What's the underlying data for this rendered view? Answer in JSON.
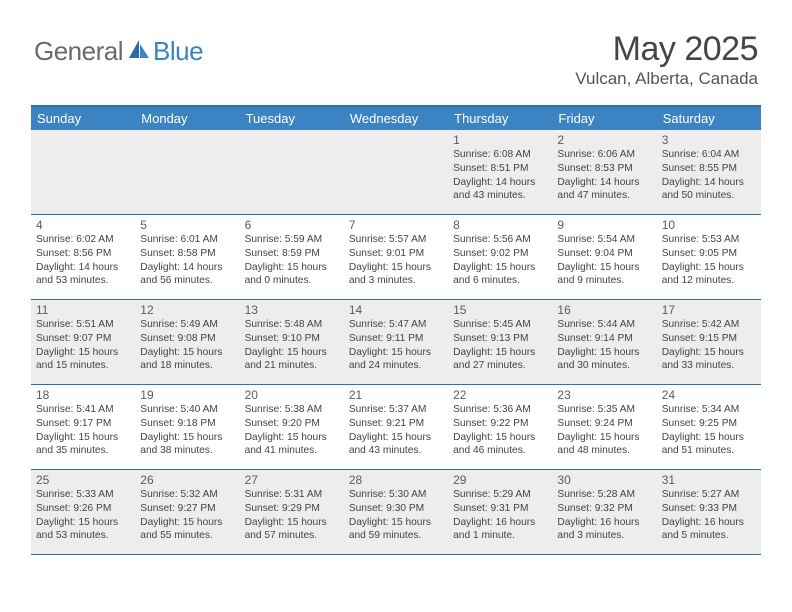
{
  "logo": {
    "general": "General",
    "blue": "Blue"
  },
  "title": "May 2025",
  "location": "Vulcan, Alberta, Canada",
  "colors": {
    "header_bg": "#3c83c3",
    "border": "#2b6faf",
    "shaded": "#ededed",
    "text": "#444444",
    "title_text": "#454545"
  },
  "weekdays": [
    "Sunday",
    "Monday",
    "Tuesday",
    "Wednesday",
    "Thursday",
    "Friday",
    "Saturday"
  ],
  "weeks": [
    [
      {
        "day": "",
        "sunrise": "",
        "sunset": "",
        "daylight": ""
      },
      {
        "day": "",
        "sunrise": "",
        "sunset": "",
        "daylight": ""
      },
      {
        "day": "",
        "sunrise": "",
        "sunset": "",
        "daylight": ""
      },
      {
        "day": "",
        "sunrise": "",
        "sunset": "",
        "daylight": ""
      },
      {
        "day": "1",
        "sunrise": "Sunrise: 6:08 AM",
        "sunset": "Sunset: 8:51 PM",
        "daylight": "Daylight: 14 hours and 43 minutes."
      },
      {
        "day": "2",
        "sunrise": "Sunrise: 6:06 AM",
        "sunset": "Sunset: 8:53 PM",
        "daylight": "Daylight: 14 hours and 47 minutes."
      },
      {
        "day": "3",
        "sunrise": "Sunrise: 6:04 AM",
        "sunset": "Sunset: 8:55 PM",
        "daylight": "Daylight: 14 hours and 50 minutes."
      }
    ],
    [
      {
        "day": "4",
        "sunrise": "Sunrise: 6:02 AM",
        "sunset": "Sunset: 8:56 PM",
        "daylight": "Daylight: 14 hours and 53 minutes."
      },
      {
        "day": "5",
        "sunrise": "Sunrise: 6:01 AM",
        "sunset": "Sunset: 8:58 PM",
        "daylight": "Daylight: 14 hours and 56 minutes."
      },
      {
        "day": "6",
        "sunrise": "Sunrise: 5:59 AM",
        "sunset": "Sunset: 8:59 PM",
        "daylight": "Daylight: 15 hours and 0 minutes."
      },
      {
        "day": "7",
        "sunrise": "Sunrise: 5:57 AM",
        "sunset": "Sunset: 9:01 PM",
        "daylight": "Daylight: 15 hours and 3 minutes."
      },
      {
        "day": "8",
        "sunrise": "Sunrise: 5:56 AM",
        "sunset": "Sunset: 9:02 PM",
        "daylight": "Daylight: 15 hours and 6 minutes."
      },
      {
        "day": "9",
        "sunrise": "Sunrise: 5:54 AM",
        "sunset": "Sunset: 9:04 PM",
        "daylight": "Daylight: 15 hours and 9 minutes."
      },
      {
        "day": "10",
        "sunrise": "Sunrise: 5:53 AM",
        "sunset": "Sunset: 9:05 PM",
        "daylight": "Daylight: 15 hours and 12 minutes."
      }
    ],
    [
      {
        "day": "11",
        "sunrise": "Sunrise: 5:51 AM",
        "sunset": "Sunset: 9:07 PM",
        "daylight": "Daylight: 15 hours and 15 minutes."
      },
      {
        "day": "12",
        "sunrise": "Sunrise: 5:49 AM",
        "sunset": "Sunset: 9:08 PM",
        "daylight": "Daylight: 15 hours and 18 minutes."
      },
      {
        "day": "13",
        "sunrise": "Sunrise: 5:48 AM",
        "sunset": "Sunset: 9:10 PM",
        "daylight": "Daylight: 15 hours and 21 minutes."
      },
      {
        "day": "14",
        "sunrise": "Sunrise: 5:47 AM",
        "sunset": "Sunset: 9:11 PM",
        "daylight": "Daylight: 15 hours and 24 minutes."
      },
      {
        "day": "15",
        "sunrise": "Sunrise: 5:45 AM",
        "sunset": "Sunset: 9:13 PM",
        "daylight": "Daylight: 15 hours and 27 minutes."
      },
      {
        "day": "16",
        "sunrise": "Sunrise: 5:44 AM",
        "sunset": "Sunset: 9:14 PM",
        "daylight": "Daylight: 15 hours and 30 minutes."
      },
      {
        "day": "17",
        "sunrise": "Sunrise: 5:42 AM",
        "sunset": "Sunset: 9:15 PM",
        "daylight": "Daylight: 15 hours and 33 minutes."
      }
    ],
    [
      {
        "day": "18",
        "sunrise": "Sunrise: 5:41 AM",
        "sunset": "Sunset: 9:17 PM",
        "daylight": "Daylight: 15 hours and 35 minutes."
      },
      {
        "day": "19",
        "sunrise": "Sunrise: 5:40 AM",
        "sunset": "Sunset: 9:18 PM",
        "daylight": "Daylight: 15 hours and 38 minutes."
      },
      {
        "day": "20",
        "sunrise": "Sunrise: 5:38 AM",
        "sunset": "Sunset: 9:20 PM",
        "daylight": "Daylight: 15 hours and 41 minutes."
      },
      {
        "day": "21",
        "sunrise": "Sunrise: 5:37 AM",
        "sunset": "Sunset: 9:21 PM",
        "daylight": "Daylight: 15 hours and 43 minutes."
      },
      {
        "day": "22",
        "sunrise": "Sunrise: 5:36 AM",
        "sunset": "Sunset: 9:22 PM",
        "daylight": "Daylight: 15 hours and 46 minutes."
      },
      {
        "day": "23",
        "sunrise": "Sunrise: 5:35 AM",
        "sunset": "Sunset: 9:24 PM",
        "daylight": "Daylight: 15 hours and 48 minutes."
      },
      {
        "day": "24",
        "sunrise": "Sunrise: 5:34 AM",
        "sunset": "Sunset: 9:25 PM",
        "daylight": "Daylight: 15 hours and 51 minutes."
      }
    ],
    [
      {
        "day": "25",
        "sunrise": "Sunrise: 5:33 AM",
        "sunset": "Sunset: 9:26 PM",
        "daylight": "Daylight: 15 hours and 53 minutes."
      },
      {
        "day": "26",
        "sunrise": "Sunrise: 5:32 AM",
        "sunset": "Sunset: 9:27 PM",
        "daylight": "Daylight: 15 hours and 55 minutes."
      },
      {
        "day": "27",
        "sunrise": "Sunrise: 5:31 AM",
        "sunset": "Sunset: 9:29 PM",
        "daylight": "Daylight: 15 hours and 57 minutes."
      },
      {
        "day": "28",
        "sunrise": "Sunrise: 5:30 AM",
        "sunset": "Sunset: 9:30 PM",
        "daylight": "Daylight: 15 hours and 59 minutes."
      },
      {
        "day": "29",
        "sunrise": "Sunrise: 5:29 AM",
        "sunset": "Sunset: 9:31 PM",
        "daylight": "Daylight: 16 hours and 1 minute."
      },
      {
        "day": "30",
        "sunrise": "Sunrise: 5:28 AM",
        "sunset": "Sunset: 9:32 PM",
        "daylight": "Daylight: 16 hours and 3 minutes."
      },
      {
        "day": "31",
        "sunrise": "Sunrise: 5:27 AM",
        "sunset": "Sunset: 9:33 PM",
        "daylight": "Daylight: 16 hours and 5 minutes."
      }
    ]
  ]
}
